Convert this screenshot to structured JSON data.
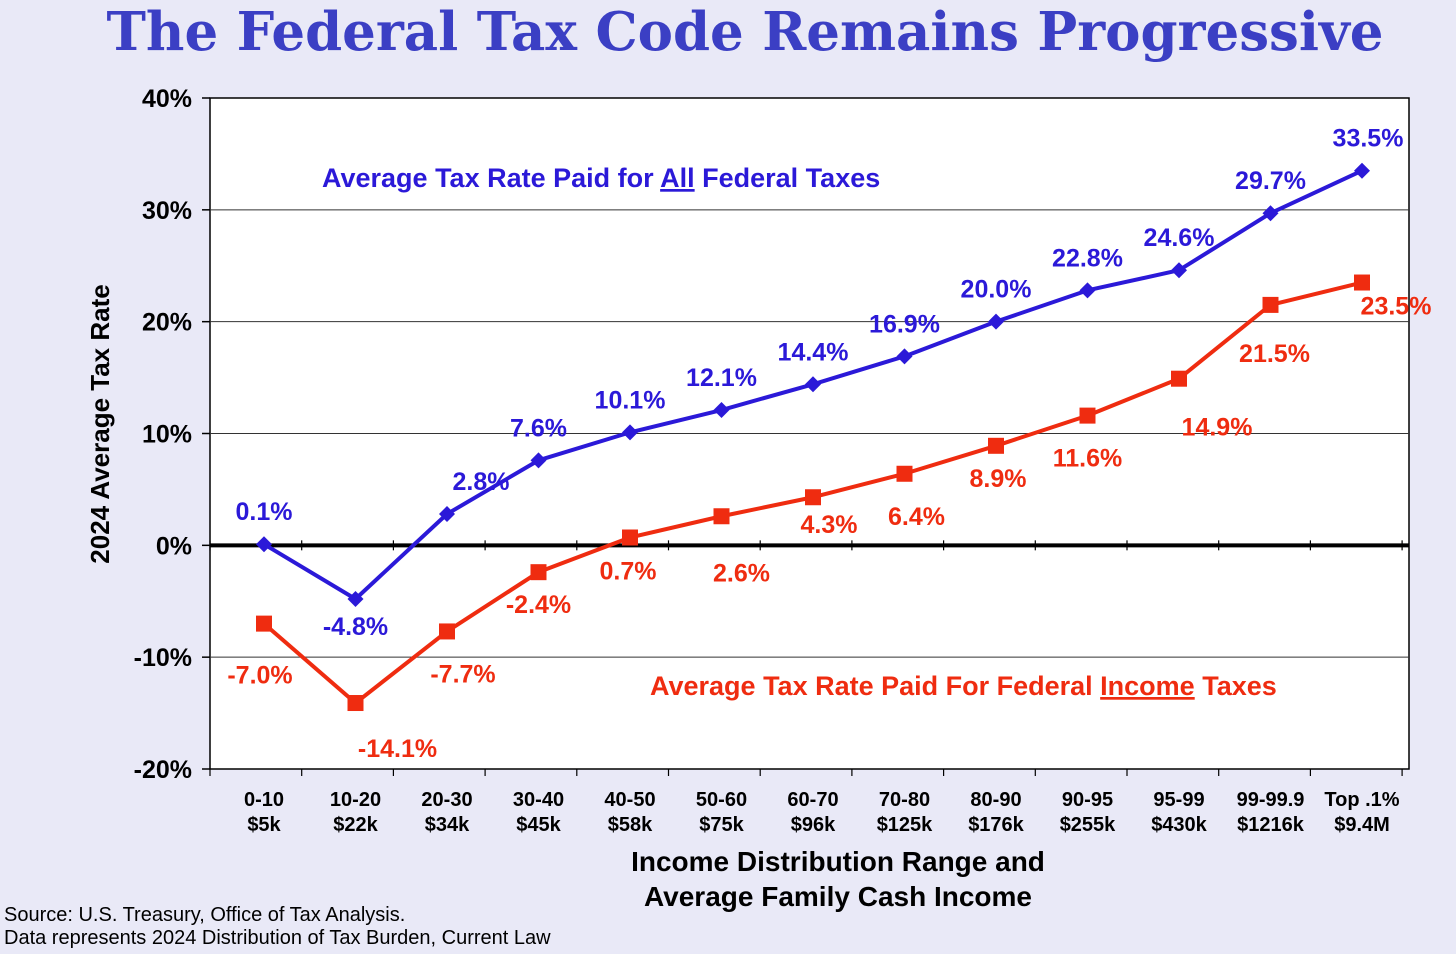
{
  "title": "The Federal Tax Code Remains Progressive",
  "source_lines": [
    "Source: U.S. Treasury, Office of Tax Analysis.",
    "Data represents 2024 Distribution of Tax Burden, Current Law"
  ],
  "colors": {
    "background": "#e9e9f7",
    "title": "#3b3fc4",
    "all_taxes": "#2b19d8",
    "income_taxes": "#ef2c10"
  },
  "chart_data": {
    "type": "line",
    "ylabel": "2024 Average Tax Rate",
    "xlabel_lines": [
      "Income Distribution Range and",
      "Average Family Cash Income"
    ],
    "ylim": [
      -20,
      40
    ],
    "yticks": [
      "-20%",
      "-10%",
      "0%",
      "10%",
      "20%",
      "30%",
      "40%"
    ],
    "grid": true,
    "categories": [
      [
        "0-10",
        "$5k"
      ],
      [
        "10-20",
        "$22k"
      ],
      [
        "20-30",
        "$34k"
      ],
      [
        "30-40",
        "$45k"
      ],
      [
        "40-50",
        "$58k"
      ],
      [
        "50-60",
        "$75k"
      ],
      [
        "60-70",
        "$96k"
      ],
      [
        "70-80",
        "$125k"
      ],
      [
        "80-90",
        "$176k"
      ],
      [
        "90-95",
        "$255k"
      ],
      [
        "95-99",
        "$430k"
      ],
      [
        "99-99.9",
        "$1216k"
      ],
      [
        "Top .1%",
        "$9.4M"
      ]
    ],
    "series": [
      {
        "label_parts": [
          "Average Tax Rate Paid for ",
          "All",
          " Federal Taxes"
        ],
        "color": "#2b19d8",
        "marker": "diamond",
        "values": [
          0.1,
          -4.8,
          2.8,
          7.6,
          10.1,
          12.1,
          14.4,
          16.9,
          20.0,
          22.8,
          24.6,
          29.7,
          33.5
        ],
        "data_labels": [
          "0.1%",
          "-4.8%",
          "2.8%",
          "7.6%",
          "10.1%",
          "12.1%",
          "14.4%",
          "16.9%",
          "20.0%",
          "22.8%",
          "24.6%",
          "29.7%",
          "33.5%"
        ]
      },
      {
        "label_parts": [
          "Average Tax Rate Paid For Federal ",
          "Income",
          " Taxes"
        ],
        "color": "#ef2c10",
        "marker": "square",
        "values": [
          -7.0,
          -14.1,
          -7.7,
          -2.4,
          0.7,
          2.6,
          4.3,
          6.4,
          8.9,
          11.6,
          14.9,
          21.5,
          23.5
        ],
        "data_labels": [
          "-7.0%",
          "-14.1%",
          "-7.7%",
          "-2.4%",
          "0.7%",
          "2.6%",
          "4.3%",
          "6.4%",
          "8.9%",
          "11.6%",
          "14.9%",
          "21.5%",
          "23.5%"
        ]
      }
    ]
  }
}
